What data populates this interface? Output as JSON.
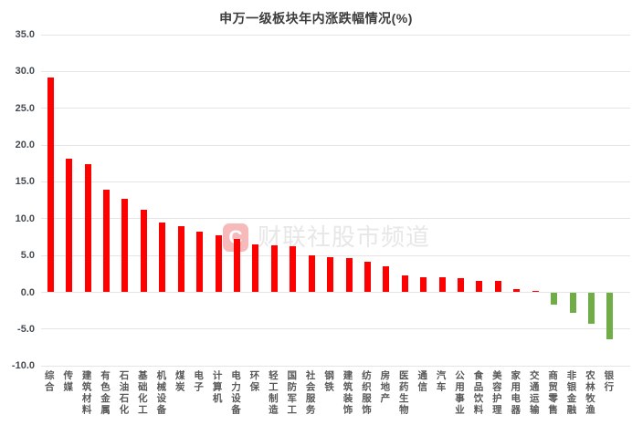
{
  "title": "申万一级板块年内涨跌幅情况(%)",
  "watermark": {
    "logo_text": "C",
    "text": "财联社股市频道"
  },
  "colors": {
    "positive_bar": "#ff0000",
    "negative_bar": "#70ad47",
    "gridline": "#e5e5e5",
    "axis_tick_text": "#454b52",
    "category_text": "#595959",
    "title_text": "#3d3d3d",
    "watermark_text": "#e7e7e7",
    "watermark_logo_bg": "#f6baba",
    "watermark_logo_fg": "#ffffff",
    "background": "#ffffff"
  },
  "chart_data": {
    "type": "bar",
    "title": "申万一级板块年内涨跌幅情况(%)",
    "xlabel": "",
    "ylabel": "",
    "ylim": [
      -10,
      35
    ],
    "ytick_values": [
      35,
      30,
      25,
      20,
      15,
      10,
      5,
      0,
      -5,
      -10
    ],
    "ytick_labels": [
      "35.0",
      "30.0",
      "25.0",
      "20.0",
      "15.0",
      "10.0",
      "5.0",
      "0.0",
      "-5.0",
      "-10.0"
    ],
    "grid": true,
    "legend": false,
    "color_rule": "red for gains (>=0), green for losses (<0)",
    "categories": [
      "综合",
      "传媒",
      "建筑材料",
      "有色金属",
      "石油石化",
      "基础化工",
      "机械设备",
      "煤炭",
      "电子",
      "计算机",
      "电力设备",
      "环保",
      "轻工制造",
      "国防军工",
      "社会服务",
      "钢铁",
      "建筑装饰",
      "纺织服饰",
      "房地产",
      "医药生物",
      "通信",
      "汽车",
      "公用事业",
      "食品饮料",
      "美容护理",
      "家用电器",
      "交通运输",
      "商贸零售",
      "非银金融",
      "农林牧渔",
      "银行"
    ],
    "values": [
      29.2,
      18.1,
      17.4,
      14.0,
      12.7,
      11.2,
      9.5,
      9.0,
      8.3,
      7.8,
      7.3,
      6.5,
      6.4,
      6.3,
      5.0,
      4.8,
      4.7,
      4.2,
      3.5,
      2.3,
      2.1,
      2.0,
      1.9,
      1.6,
      1.5,
      0.4,
      0.2,
      -1.7,
      -2.8,
      -4.3,
      -6.4
    ]
  }
}
